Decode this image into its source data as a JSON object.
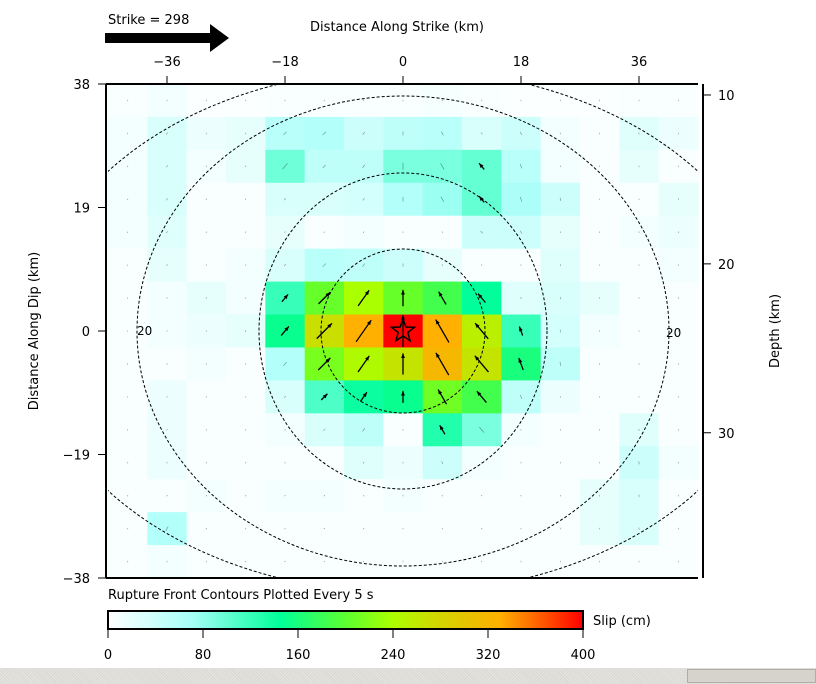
{
  "chart_data": {
    "type": "heatmap",
    "title": "",
    "strike_label": "Strike = 298",
    "xlabel": "Distance Along Strike (km)",
    "ylabel": "Distance Along Dip (km)",
    "y2label": "Depth (km)",
    "xlim": [
      -45,
      45
    ],
    "ylim": [
      -38,
      38
    ],
    "y2lim": [
      38.6,
      9.35
    ],
    "xticks": [
      -36,
      -18,
      0,
      18,
      36
    ],
    "xtick_labels": [
      "−36",
      "−18",
      "0",
      "18",
      "36"
    ],
    "yticks": [
      38,
      19,
      0,
      -19,
      -38
    ],
    "ytick_labels": [
      "38",
      "19",
      "0",
      "−19",
      "−38"
    ],
    "y2ticks": [
      10,
      20,
      30
    ],
    "y2tick_labels": [
      "10",
      "20",
      "30"
    ],
    "grid_cols": 15,
    "grid_rows": 15,
    "slip_cm": [
      [
        5,
        10,
        3,
        3,
        5,
        5,
        5,
        5,
        8,
        5,
        3,
        3,
        3,
        5,
        5
      ],
      [
        10,
        30,
        15,
        20,
        55,
        60,
        40,
        50,
        55,
        30,
        40,
        10,
        5,
        25,
        15
      ],
      [
        10,
        30,
        10,
        20,
        95,
        50,
        50,
        90,
        90,
        100,
        55,
        10,
        5,
        20,
        5
      ],
      [
        10,
        30,
        5,
        5,
        30,
        30,
        35,
        60,
        75,
        100,
        65,
        40,
        5,
        5,
        20
      ],
      [
        10,
        25,
        5,
        5,
        20,
        5,
        10,
        5,
        5,
        40,
        40,
        20,
        5,
        10,
        15
      ],
      [
        5,
        20,
        5,
        10,
        30,
        55,
        50,
        40,
        20,
        5,
        5,
        25,
        5,
        5,
        10
      ],
      [
        5,
        10,
        20,
        10,
        120,
        205,
        240,
        205,
        185,
        145,
        25,
        30,
        20,
        5,
        5
      ],
      [
        5,
        10,
        15,
        20,
        150,
        270,
        330,
        400,
        330,
        255,
        120,
        35,
        10,
        5,
        5
      ],
      [
        5,
        5,
        10,
        5,
        60,
        215,
        245,
        265,
        320,
        265,
        160,
        50,
        5,
        5,
        5
      ],
      [
        5,
        15,
        5,
        5,
        30,
        110,
        140,
        150,
        210,
        185,
        50,
        15,
        5,
        5,
        5
      ],
      [
        5,
        15,
        5,
        5,
        10,
        30,
        50,
        5,
        130,
        90,
        10,
        5,
        5,
        25,
        5
      ],
      [
        5,
        15,
        5,
        5,
        5,
        5,
        25,
        15,
        40,
        10,
        5,
        5,
        5,
        40,
        10
      ],
      [
        5,
        5,
        10,
        5,
        10,
        10,
        5,
        10,
        5,
        5,
        5,
        5,
        20,
        30,
        5
      ],
      [
        5,
        60,
        5,
        5,
        5,
        5,
        5,
        5,
        5,
        5,
        5,
        5,
        20,
        30,
        5
      ],
      [
        5,
        10,
        5,
        5,
        5,
        5,
        5,
        5,
        5,
        5,
        5,
        5,
        5,
        5,
        5
      ]
    ],
    "rake_deg_by_column": [
      60,
      60,
      60,
      60,
      50,
      45,
      55,
      90,
      120,
      130,
      110,
      100,
      100,
      100,
      100
    ],
    "hypocenter": {
      "x_km": 0,
      "dip_km": 0
    },
    "contour_label": "20",
    "contour_caption": "Rupture Front Contours Plotted Every 5 s",
    "colorbar": {
      "label": "Slip (cm)",
      "range": [
        0,
        400
      ],
      "ticks": [
        "0",
        "80",
        "160",
        "240",
        "320",
        "400"
      ],
      "stops": [
        {
          "v": 0,
          "c": "#ffffff"
        },
        {
          "v": 70,
          "c": "#a6fff8"
        },
        {
          "v": 145,
          "c": "#00ff9a"
        },
        {
          "v": 200,
          "c": "#5cff30"
        },
        {
          "v": 240,
          "c": "#aaff00"
        },
        {
          "v": 280,
          "c": "#d4d400"
        },
        {
          "v": 330,
          "c": "#ffb000"
        },
        {
          "v": 365,
          "c": "#ff5a00"
        },
        {
          "v": 400,
          "c": "#ff0000"
        }
      ]
    }
  }
}
